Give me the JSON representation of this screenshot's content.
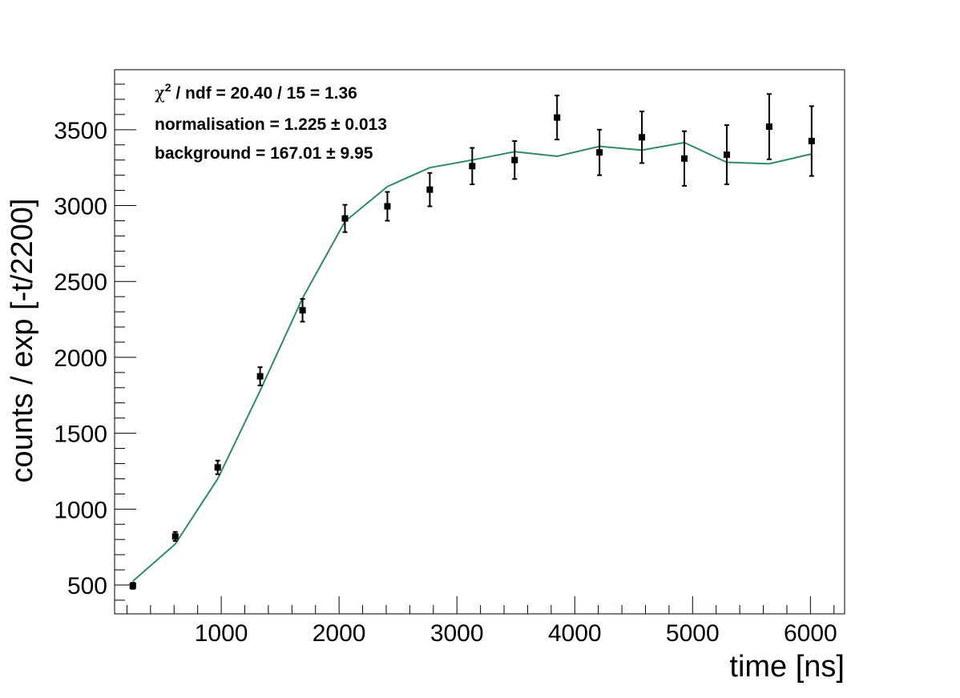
{
  "chart_data": {
    "type": "scatter",
    "xlabel": "time [ns]",
    "ylabel": "counts / exp [-t/2200]",
    "xlim": [
      95,
      6290
    ],
    "ylim": [
      310,
      3895
    ],
    "x_ticks": [
      1000,
      2000,
      3000,
      4000,
      5000,
      6000
    ],
    "x_tick_labels": [
      "1000",
      "2000",
      "3000",
      "4000",
      "5000",
      "6000"
    ],
    "y_ticks": [
      500,
      1000,
      1500,
      2000,
      2500,
      3000,
      3500
    ],
    "y_tick_labels": [
      "500",
      "1000",
      "1500",
      "2000",
      "2500",
      "3000",
      "3500"
    ],
    "grid": false,
    "stats": {
      "chi2_symbol": "χ",
      "chi2_sup": "2",
      "chi2_rest": " / ndf = 20.40 / 15 = 1.36",
      "norm_text": "normalisation = 1.225 ± 0.013",
      "bkg_text": "background = 167.01 ± 9.95"
    },
    "series": [
      {
        "kind": "points",
        "color": "#000000",
        "x": [
          250,
          610,
          970,
          1330,
          1690,
          2050,
          2410,
          2770,
          3130,
          3490,
          3850,
          4210,
          4570,
          4930,
          5290,
          5650,
          6010
        ],
        "y": [
          495,
          820,
          1275,
          1875,
          2310,
          2915,
          2995,
          3105,
          3260,
          3300,
          3580,
          3350,
          3450,
          3310,
          3335,
          3520,
          3425
        ],
        "err": [
          20,
          30,
          45,
          60,
          75,
          90,
          95,
          110,
          120,
          125,
          145,
          150,
          170,
          180,
          195,
          215,
          230
        ]
      },
      {
        "kind": "line",
        "color": "#2e8b62",
        "x": [
          250,
          610,
          970,
          1330,
          1690,
          2050,
          2410,
          2770,
          3130,
          3490,
          3850,
          4210,
          4570,
          4930,
          5290,
          5650,
          6010
        ],
        "y": [
          525,
          770,
          1200,
          1780,
          2390,
          2895,
          3125,
          3250,
          3300,
          3355,
          3325,
          3390,
          3365,
          3415,
          3285,
          3275,
          3340
        ]
      }
    ]
  }
}
